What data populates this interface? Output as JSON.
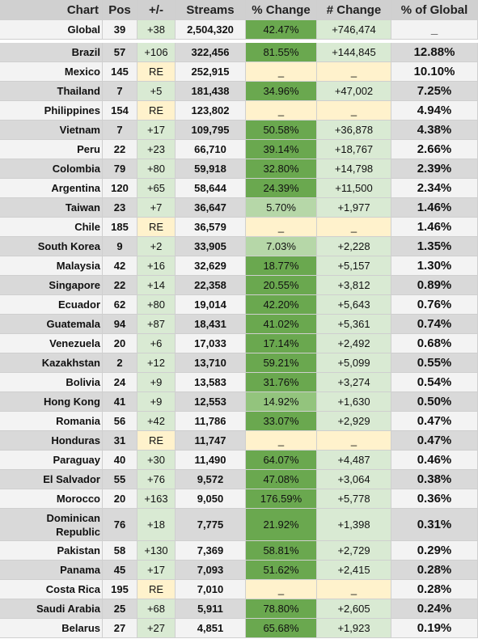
{
  "chart_data": {
    "type": "table",
    "columns": [
      "Chart",
      "Pos",
      "+/-",
      "Streams",
      "% Change",
      "# Change",
      "% of Global"
    ],
    "global": {
      "chart": "Global",
      "pos": "39",
      "move": "+38",
      "streams": "2,504,320",
      "pct_change": "42.47%",
      "num_change": "+746,474",
      "share": "_",
      "pct_value": 42.47
    },
    "rows": [
      {
        "chart": "Brazil",
        "pos": "57",
        "move": "+106",
        "streams": "322,456",
        "pct_change": "81.55%",
        "num_change": "+144,845",
        "share": "12.88%",
        "pct_value": 81.55
      },
      {
        "chart": "Mexico",
        "pos": "145",
        "move": "RE",
        "streams": "252,915",
        "pct_change": "_",
        "num_change": "_",
        "share": "10.10%",
        "pct_value": null
      },
      {
        "chart": "Thailand",
        "pos": "7",
        "move": "+5",
        "streams": "181,438",
        "pct_change": "34.96%",
        "num_change": "+47,002",
        "share": "7.25%",
        "pct_value": 34.96
      },
      {
        "chart": "Philippines",
        "pos": "154",
        "move": "RE",
        "streams": "123,802",
        "pct_change": "_",
        "num_change": "_",
        "share": "4.94%",
        "pct_value": null
      },
      {
        "chart": "Vietnam",
        "pos": "7",
        "move": "+17",
        "streams": "109,795",
        "pct_change": "50.58%",
        "num_change": "+36,878",
        "share": "4.38%",
        "pct_value": 50.58
      },
      {
        "chart": "Peru",
        "pos": "22",
        "move": "+23",
        "streams": "66,710",
        "pct_change": "39.14%",
        "num_change": "+18,767",
        "share": "2.66%",
        "pct_value": 39.14
      },
      {
        "chart": "Colombia",
        "pos": "79",
        "move": "+80",
        "streams": "59,918",
        "pct_change": "32.80%",
        "num_change": "+14,798",
        "share": "2.39%",
        "pct_value": 32.8
      },
      {
        "chart": "Argentina",
        "pos": "120",
        "move": "+65",
        "streams": "58,644",
        "pct_change": "24.39%",
        "num_change": "+11,500",
        "share": "2.34%",
        "pct_value": 24.39
      },
      {
        "chart": "Taiwan",
        "pos": "23",
        "move": "+7",
        "streams": "36,647",
        "pct_change": "5.70%",
        "num_change": "+1,977",
        "share": "1.46%",
        "pct_value": 5.7
      },
      {
        "chart": "Chile",
        "pos": "185",
        "move": "RE",
        "streams": "36,579",
        "pct_change": "_",
        "num_change": "_",
        "share": "1.46%",
        "pct_value": null
      },
      {
        "chart": "South Korea",
        "pos": "9",
        "move": "+2",
        "streams": "33,905",
        "pct_change": "7.03%",
        "num_change": "+2,228",
        "share": "1.35%",
        "pct_value": 7.03
      },
      {
        "chart": "Malaysia",
        "pos": "42",
        "move": "+16",
        "streams": "32,629",
        "pct_change": "18.77%",
        "num_change": "+5,157",
        "share": "1.30%",
        "pct_value": 18.77
      },
      {
        "chart": "Singapore",
        "pos": "22",
        "move": "+14",
        "streams": "22,358",
        "pct_change": "20.55%",
        "num_change": "+3,812",
        "share": "0.89%",
        "pct_value": 20.55
      },
      {
        "chart": "Ecuador",
        "pos": "62",
        "move": "+80",
        "streams": "19,014",
        "pct_change": "42.20%",
        "num_change": "+5,643",
        "share": "0.76%",
        "pct_value": 42.2
      },
      {
        "chart": "Guatemala",
        "pos": "94",
        "move": "+87",
        "streams": "18,431",
        "pct_change": "41.02%",
        "num_change": "+5,361",
        "share": "0.74%",
        "pct_value": 41.02
      },
      {
        "chart": "Venezuela",
        "pos": "20",
        "move": "+6",
        "streams": "17,033",
        "pct_change": "17.14%",
        "num_change": "+2,492",
        "share": "0.68%",
        "pct_value": 17.14
      },
      {
        "chart": "Kazakhstan",
        "pos": "2",
        "move": "+12",
        "streams": "13,710",
        "pct_change": "59.21%",
        "num_change": "+5,099",
        "share": "0.55%",
        "pct_value": 59.21
      },
      {
        "chart": "Bolivia",
        "pos": "24",
        "move": "+9",
        "streams": "13,583",
        "pct_change": "31.76%",
        "num_change": "+3,274",
        "share": "0.54%",
        "pct_value": 31.76
      },
      {
        "chart": "Hong Kong",
        "pos": "41",
        "move": "+9",
        "streams": "12,553",
        "pct_change": "14.92%",
        "num_change": "+1,630",
        "share": "0.50%",
        "pct_value": 14.92
      },
      {
        "chart": "Romania",
        "pos": "56",
        "move": "+42",
        "streams": "11,786",
        "pct_change": "33.07%",
        "num_change": "+2,929",
        "share": "0.47%",
        "pct_value": 33.07
      },
      {
        "chart": "Honduras",
        "pos": "31",
        "move": "RE",
        "streams": "11,747",
        "pct_change": "_",
        "num_change": "_",
        "share": "0.47%",
        "pct_value": null
      },
      {
        "chart": "Paraguay",
        "pos": "40",
        "move": "+30",
        "streams": "11,490",
        "pct_change": "64.07%",
        "num_change": "+4,487",
        "share": "0.46%",
        "pct_value": 64.07
      },
      {
        "chart": "El Salvador",
        "pos": "55",
        "move": "+76",
        "streams": "9,572",
        "pct_change": "47.08%",
        "num_change": "+3,064",
        "share": "0.38%",
        "pct_value": 47.08
      },
      {
        "chart": "Morocco",
        "pos": "20",
        "move": "+163",
        "streams": "9,050",
        "pct_change": "176.59%",
        "num_change": "+5,778",
        "share": "0.36%",
        "pct_value": 176.59
      },
      {
        "chart": "Dominican Republic",
        "pos": "76",
        "move": "+18",
        "streams": "7,775",
        "pct_change": "21.92%",
        "num_change": "+1,398",
        "share": "0.31%",
        "pct_value": 21.92
      },
      {
        "chart": "Pakistan",
        "pos": "58",
        "move": "+130",
        "streams": "7,369",
        "pct_change": "58.81%",
        "num_change": "+2,729",
        "share": "0.29%",
        "pct_value": 58.81
      },
      {
        "chart": "Panama",
        "pos": "45",
        "move": "+17",
        "streams": "7,093",
        "pct_change": "51.62%",
        "num_change": "+2,415",
        "share": "0.28%",
        "pct_value": 51.62
      },
      {
        "chart": "Costa Rica",
        "pos": "195",
        "move": "RE",
        "streams": "7,010",
        "pct_change": "_",
        "num_change": "_",
        "share": "0.28%",
        "pct_value": null
      },
      {
        "chart": "Saudi Arabia",
        "pos": "25",
        "move": "+68",
        "streams": "5,911",
        "pct_change": "78.80%",
        "num_change": "+2,605",
        "share": "0.24%",
        "pct_value": 78.8
      },
      {
        "chart": "Belarus",
        "pos": "27",
        "move": "+27",
        "streams": "4,851",
        "pct_change": "65.68%",
        "num_change": "+1,923",
        "share": "0.19%",
        "pct_value": 65.68
      }
    ]
  },
  "colors": {
    "header_bg": "#d0d0d0",
    "row_light": "#f3f3f3",
    "row_dark": "#d9d9d9",
    "move_up_bg": "#d9ead3",
    "move_re_bg": "#fff2cc",
    "pct_strong": "#6aa84f",
    "pct_medium": "#93c47d",
    "pct_light": "#b6d7a8",
    "pct_missing": "#fff2cc",
    "num_up_bg": "#d9ead3",
    "num_missing_bg": "#fff2cc"
  }
}
